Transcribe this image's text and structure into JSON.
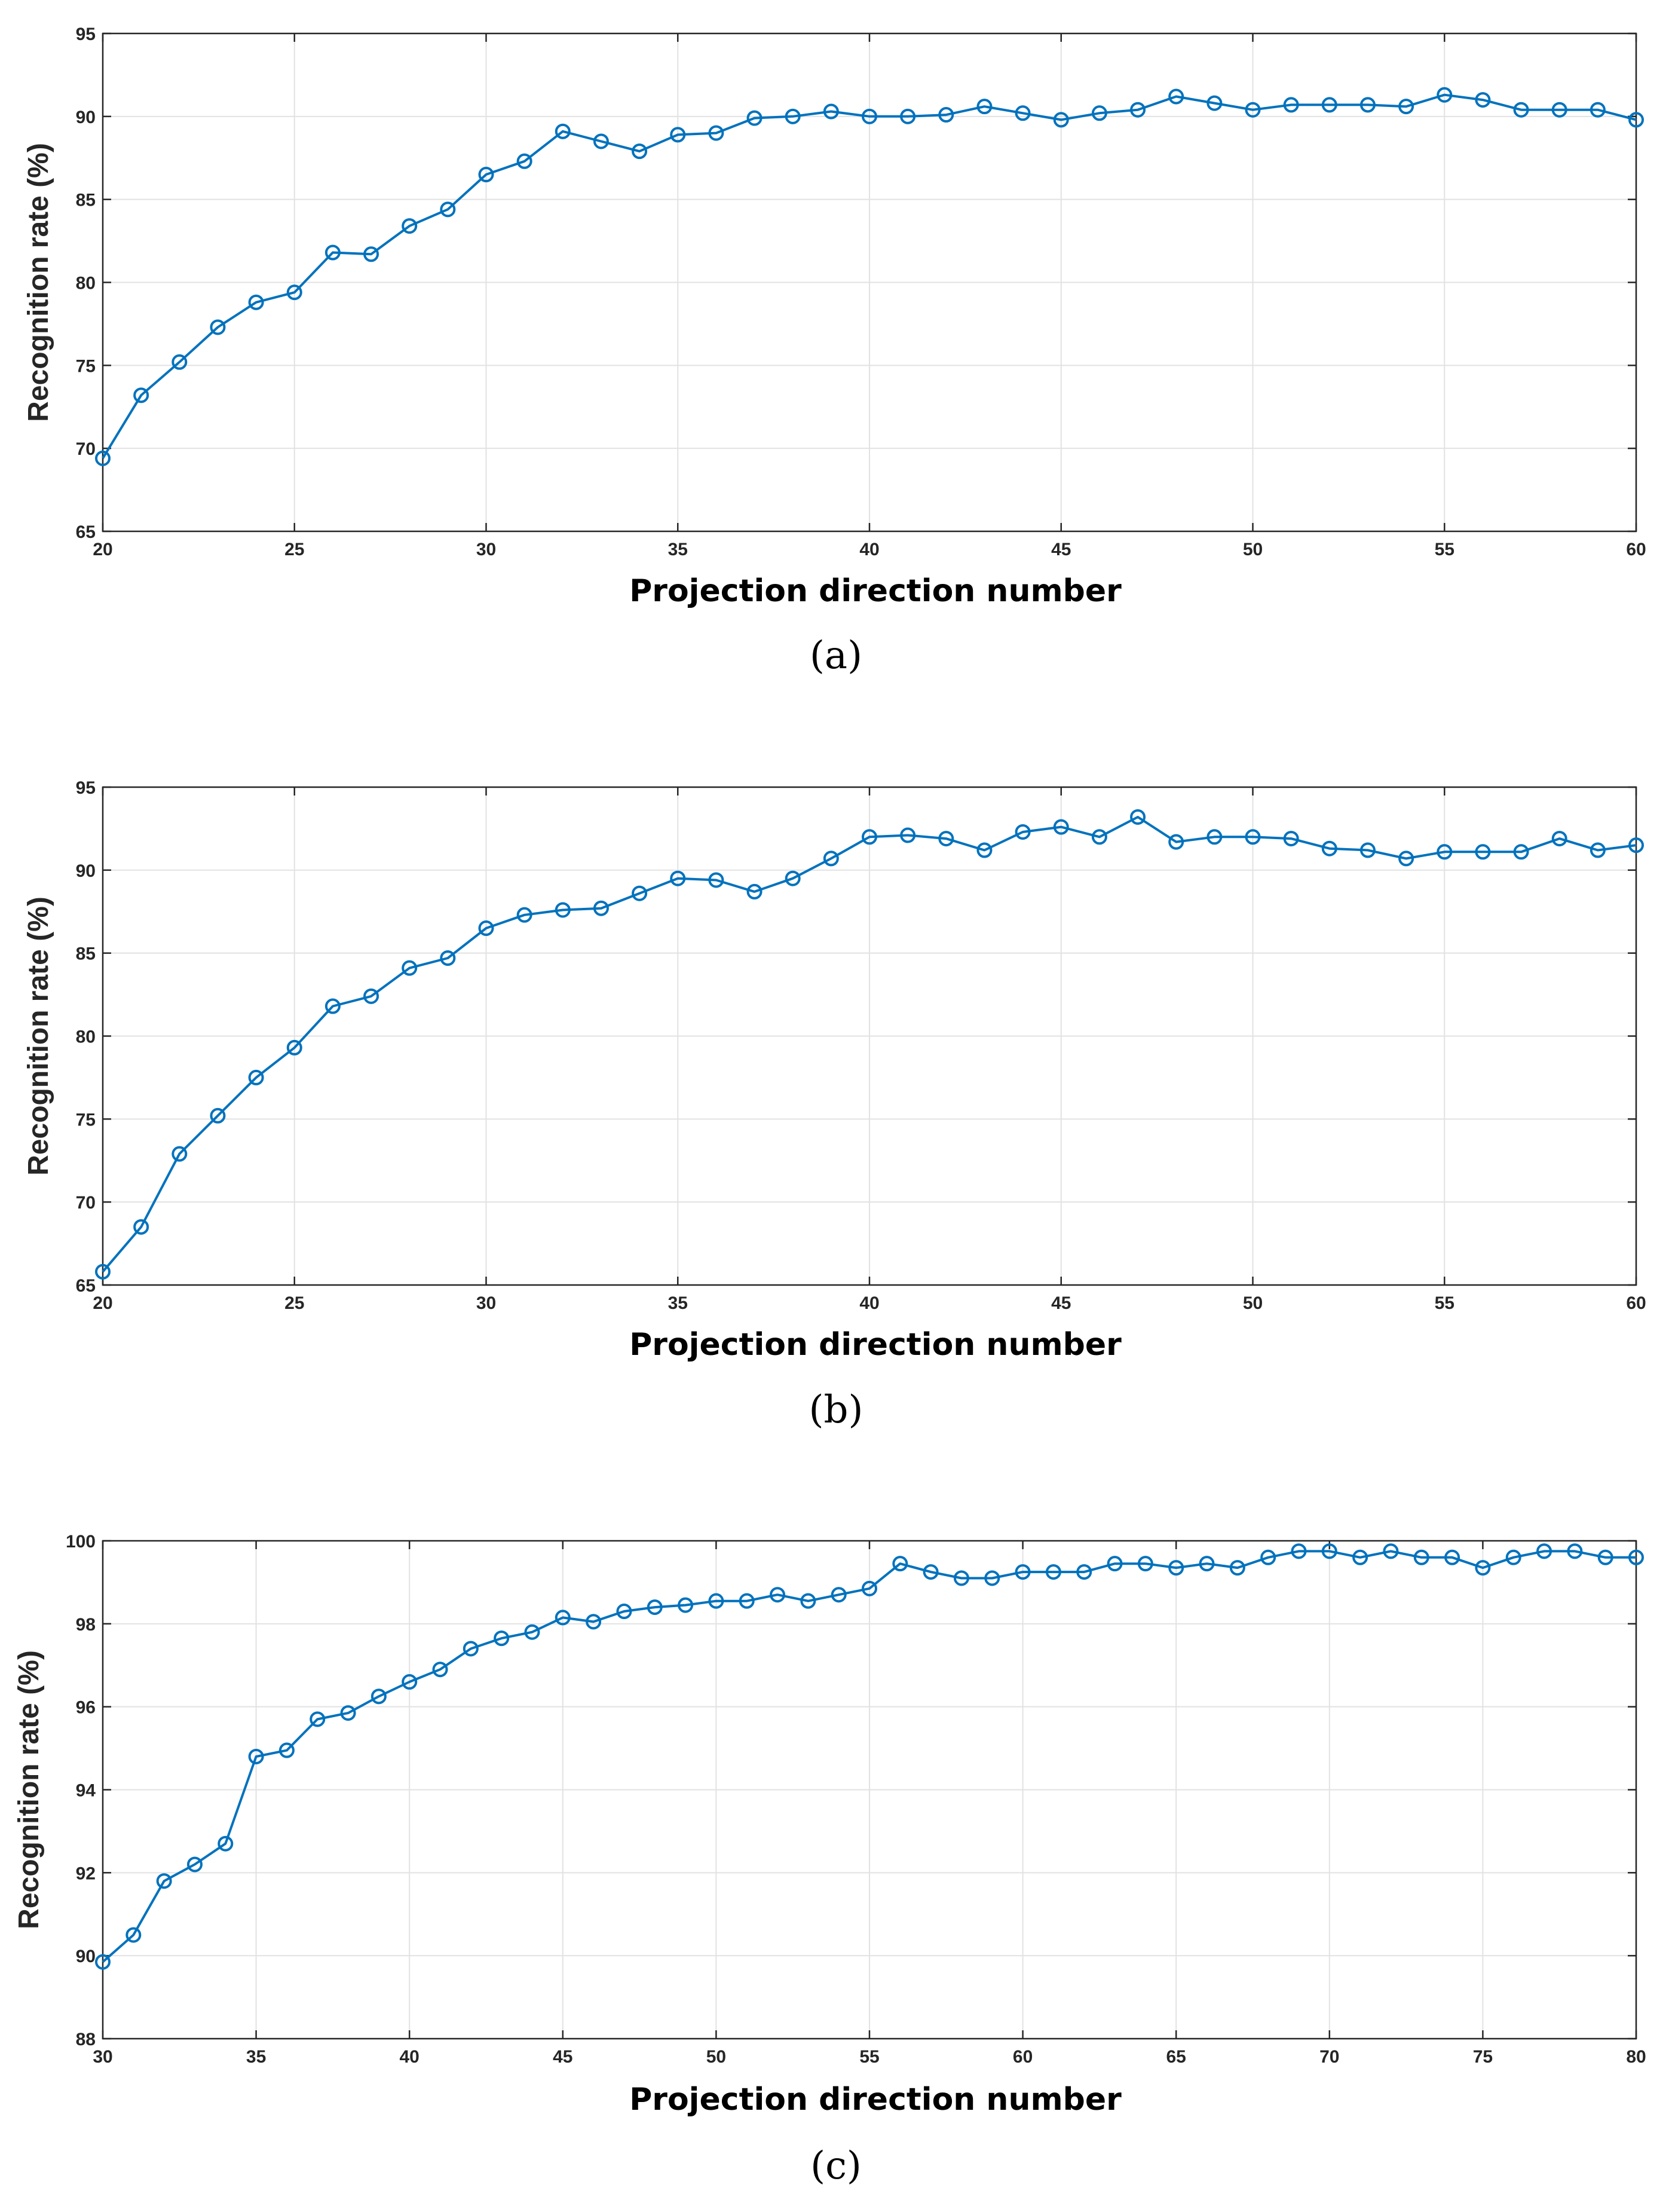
{
  "chart_data": [
    {
      "type": "line",
      "panel_label": "(a)",
      "xlabel": "Projection direction number",
      "ylabel": "Recognition rate (%)",
      "xlim": [
        20,
        60
      ],
      "ylim": [
        65,
        95
      ],
      "xticks": [
        20,
        25,
        30,
        35,
        40,
        45,
        50,
        55,
        60
      ],
      "yticks": [
        65,
        70,
        75,
        80,
        85,
        90,
        95
      ],
      "grid": true,
      "marker": "circle",
      "color": "#0072BD",
      "series": [
        {
          "name": "recognition rate",
          "x": [
            20,
            21,
            22,
            23,
            24,
            25,
            26,
            27,
            28,
            29,
            30,
            31,
            32,
            33,
            34,
            35,
            36,
            37,
            38,
            39,
            40,
            41,
            42,
            43,
            44,
            45,
            46,
            47,
            48,
            49,
            50,
            51,
            52,
            53,
            54,
            55,
            56,
            57,
            58,
            59,
            60
          ],
          "values": [
            69.4,
            73.2,
            75.2,
            77.3,
            78.8,
            79.4,
            81.8,
            81.7,
            83.4,
            84.4,
            86.5,
            87.3,
            89.1,
            88.5,
            87.9,
            88.9,
            89.0,
            89.9,
            90.0,
            90.3,
            90.0,
            90.0,
            90.1,
            90.6,
            90.2,
            89.8,
            90.2,
            90.4,
            91.2,
            90.8,
            90.4,
            90.7,
            90.7,
            90.7,
            90.6,
            91.3,
            91.0,
            90.4,
            90.4,
            90.4,
            89.8
          ]
        }
      ]
    },
    {
      "type": "line",
      "panel_label": "(b)",
      "xlabel": "Projection direction number",
      "ylabel": "Recognition rate (%)",
      "xlim": [
        20,
        60
      ],
      "ylim": [
        65,
        95
      ],
      "xticks": [
        20,
        25,
        30,
        35,
        40,
        45,
        50,
        55,
        60
      ],
      "yticks": [
        65,
        70,
        75,
        80,
        85,
        90,
        95
      ],
      "grid": true,
      "marker": "circle",
      "color": "#0072BD",
      "series": [
        {
          "name": "recognition rate",
          "x": [
            20,
            21,
            22,
            23,
            24,
            25,
            26,
            27,
            28,
            29,
            30,
            31,
            32,
            33,
            34,
            35,
            36,
            37,
            38,
            39,
            40,
            41,
            42,
            43,
            44,
            45,
            46,
            47,
            48,
            49,
            50,
            51,
            52,
            53,
            54,
            55,
            56,
            57,
            58,
            59,
            60
          ],
          "values": [
            65.8,
            68.5,
            72.9,
            75.2,
            77.5,
            79.3,
            81.8,
            82.4,
            84.1,
            84.7,
            86.5,
            87.3,
            87.6,
            87.7,
            88.6,
            89.5,
            89.4,
            88.7,
            89.5,
            90.7,
            92.0,
            92.1,
            91.9,
            91.2,
            92.3,
            92.6,
            92.0,
            93.2,
            91.7,
            92.0,
            92.0,
            91.9,
            91.3,
            91.2,
            90.7,
            91.1,
            91.1,
            91.1,
            91.9,
            91.2,
            91.5
          ]
        }
      ]
    },
    {
      "type": "line",
      "panel_label": "(c)",
      "xlabel": "Projection direction number",
      "ylabel": "Recognition rate (%)",
      "xlim": [
        30,
        80
      ],
      "ylim": [
        88,
        100
      ],
      "xticks": [
        30,
        35,
        40,
        45,
        50,
        55,
        60,
        65,
        70,
        75,
        80
      ],
      "yticks": [
        88,
        90,
        92,
        94,
        96,
        98,
        100
      ],
      "grid": true,
      "marker": "circle",
      "color": "#0072BD",
      "series": [
        {
          "name": "recognition rate",
          "x": [
            30,
            31,
            32,
            33,
            34,
            35,
            36,
            37,
            38,
            39,
            40,
            41,
            42,
            43,
            44,
            45,
            46,
            47,
            48,
            49,
            50,
            51,
            52,
            53,
            54,
            55,
            56,
            57,
            58,
            59,
            60,
            61,
            62,
            63,
            64,
            65,
            66,
            67,
            68,
            69,
            70,
            71,
            72,
            73,
            74,
            75,
            76,
            77,
            78,
            79,
            80
          ],
          "values": [
            89.85,
            90.5,
            91.8,
            92.2,
            92.7,
            94.8,
            94.95,
            95.7,
            95.85,
            96.25,
            96.6,
            96.9,
            97.4,
            97.65,
            97.8,
            98.15,
            98.05,
            98.3,
            98.4,
            98.45,
            98.55,
            98.55,
            98.7,
            98.55,
            98.7,
            98.85,
            99.45,
            99.25,
            99.1,
            99.1,
            99.25,
            99.25,
            99.25,
            99.45,
            99.45,
            99.35,
            99.45,
            99.35,
            99.6,
            99.75,
            99.75,
            99.6,
            99.75,
            99.6,
            99.6,
            99.35,
            99.6,
            99.75,
            99.75,
            99.6,
            99.6
          ]
        }
      ]
    }
  ]
}
